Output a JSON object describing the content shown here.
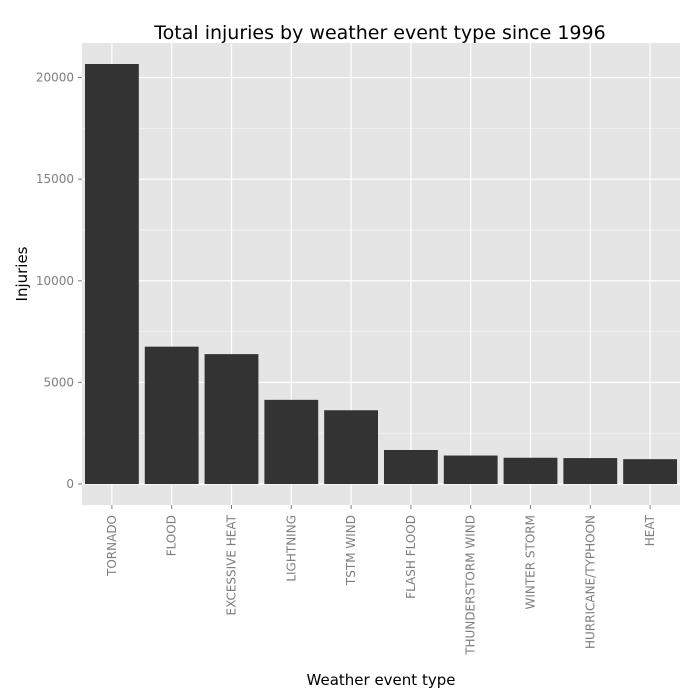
{
  "chart_data": {
    "type": "bar",
    "title": "Total injuries by weather event type since 1996",
    "xlabel": "Weather event type",
    "ylabel": "Injuries",
    "categories": [
      "TORNADO",
      "FLOOD",
      "EXCESSIVE HEAT",
      "LIGHTNING",
      "TSTM WIND",
      "FLASH FLOOD",
      "THUNDERSTORM WIND",
      "WINTER STORM",
      "HURRICANE/TYPHOON",
      "HEAT"
    ],
    "values": [
      20667,
      6758,
      6391,
      4141,
      3629,
      1674,
      1400,
      1292,
      1275,
      1222
    ],
    "yticks": [
      0,
      5000,
      10000,
      15000,
      20000
    ],
    "ylim": [
      -1033,
      21700
    ],
    "grid": true,
    "colors": {
      "panel_background": "#e5e5e5",
      "grid_major": "#ffffff",
      "grid_minor": "#f2f2f2",
      "bar_fill": "#333333",
      "tick_text": "#7f7f7f"
    }
  }
}
